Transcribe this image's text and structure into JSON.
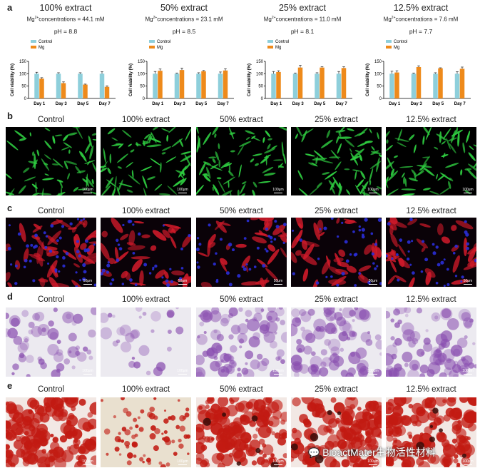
{
  "panel_labels": {
    "a": "a",
    "b": "b",
    "c": "c",
    "d": "d",
    "e": "e"
  },
  "colors": {
    "control": "#8ecfdb",
    "mg": "#ee8a1b",
    "gfp": "#2ecc40",
    "phalloidin": "#d11a2a",
    "dapi": "#2a2ed8",
    "crystal": "#8a4fb0",
    "alizarin": "#c21a12"
  },
  "legend": {
    "control": "Control",
    "mg": "Mg"
  },
  "charts": [
    {
      "title": "100% extract",
      "conc_prefix": "Mg",
      "conc_sup": "2+",
      "conc_text": "concentrations = 44.1 mM",
      "ph": "pH = 8.8"
    },
    {
      "title": "50% extract",
      "conc_prefix": "Mg",
      "conc_sup": "2+",
      "conc_text": "concentrations = 23.1 mM",
      "ph": "pH = 8.5"
    },
    {
      "title": "25% extract",
      "conc_prefix": "Mg",
      "conc_sup": "2+",
      "conc_text": "concentrations = 11.0 mM",
      "ph": "pH = 8.1"
    },
    {
      "title": "12.5% extract",
      "conc_prefix": "Mg",
      "conc_sup": "2+",
      "conc_text": "concentrations = 7.6 mM",
      "ph": "pH = 7.7"
    }
  ],
  "chart_data": [
    {
      "type": "bar",
      "title": "100% extract",
      "ylabel": "Cell viability (%)",
      "ylim": [
        0,
        150
      ],
      "yticks": [
        0,
        50,
        100,
        150
      ],
      "categories": [
        "Day 1",
        "Day 3",
        "Day 5",
        "Day 7"
      ],
      "series": [
        {
          "name": "Control",
          "values": [
            100,
            100,
            100,
            100
          ],
          "errors": [
            6,
            4,
            4,
            8
          ]
        },
        {
          "name": "Mg",
          "values": [
            80,
            62,
            56,
            47
          ],
          "errors": [
            4,
            5,
            2,
            4
          ]
        }
      ]
    },
    {
      "type": "bar",
      "title": "50% extract",
      "ylabel": "Cell viability (%)",
      "ylim": [
        0,
        150
      ],
      "yticks": [
        0,
        50,
        100,
        150
      ],
      "categories": [
        "Day 1",
        "Day 3",
        "Day 5",
        "Day 7"
      ],
      "series": [
        {
          "name": "Control",
          "values": [
            100,
            100,
            100,
            100
          ],
          "errors": [
            9,
            3,
            4,
            7
          ]
        },
        {
          "name": "Mg",
          "values": [
            112,
            115,
            110,
            113
          ],
          "errors": [
            7,
            8,
            3,
            7
          ]
        }
      ]
    },
    {
      "type": "bar",
      "title": "25% extract",
      "ylabel": "Cell viability (%)",
      "ylim": [
        0,
        150
      ],
      "yticks": [
        0,
        50,
        100,
        150
      ],
      "categories": [
        "Day 1",
        "Day 3",
        "Day 5",
        "Day 7"
      ],
      "series": [
        {
          "name": "Control",
          "values": [
            100,
            100,
            100,
            100
          ],
          "errors": [
            9,
            3,
            4,
            9
          ]
        },
        {
          "name": "Mg",
          "values": [
            107,
            125,
            125,
            123
          ],
          "errors": [
            5,
            9,
            3,
            5
          ]
        }
      ]
    },
    {
      "type": "bar",
      "title": "12.5% extract",
      "ylabel": "Cell viability (%)",
      "ylim": [
        0,
        150
      ],
      "yticks": [
        0,
        50,
        100,
        150
      ],
      "categories": [
        "Day 1",
        "Day 3",
        "Day 5",
        "Day 7"
      ],
      "series": [
        {
          "name": "Control",
          "values": [
            100,
            100,
            100,
            100
          ],
          "errors": [
            10,
            3,
            4,
            8
          ]
        },
        {
          "name": "Mg",
          "values": [
            105,
            127,
            122,
            120
          ],
          "errors": [
            7,
            5,
            2,
            7
          ]
        }
      ]
    }
  ],
  "image_rows": [
    {
      "id": "b",
      "labels": [
        "Control",
        "100% extract",
        "50% extract",
        "25% extract",
        "12.5% extract"
      ],
      "scale": "100μm",
      "style": "gfp"
    },
    {
      "id": "c",
      "labels": [
        "Control",
        "100% extract",
        "50% extract",
        "25% extract",
        "12.5% extract"
      ],
      "scale": "50μm",
      "style": "phalloidin"
    },
    {
      "id": "d",
      "labels": [
        "Control",
        "100% extract",
        "50% extract",
        "25% extract",
        "12.5% extract"
      ],
      "scale": "100μm",
      "style": "crystal"
    },
    {
      "id": "e",
      "labels": [
        "Control",
        "100% extract",
        "50% extract",
        "25% extract",
        "12.5% extract"
      ],
      "scale": "100μm",
      "style": "alizarin"
    }
  ],
  "watermark": {
    "text": "BioactMater生物活性材料"
  }
}
